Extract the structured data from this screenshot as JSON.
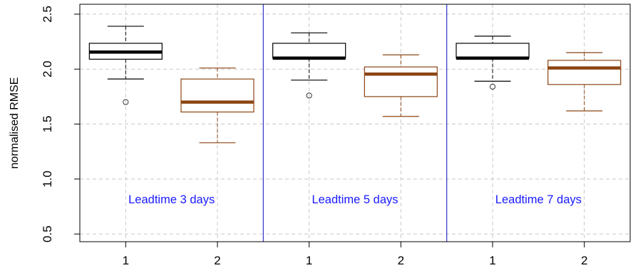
{
  "chart_data": {
    "type": "box",
    "title": "",
    "xlabel": "",
    "ylabel": "normalised RMSE",
    "ylim": [
      0.43,
      2.59
    ],
    "yticks": [
      0.5,
      1.0,
      1.5,
      2.0,
      2.5
    ],
    "ytick_labels": [
      "0.5",
      "1.0",
      "1.5",
      "2.0",
      "2.5"
    ],
    "grid": true,
    "series_colors": [
      "#000000",
      "#8B4513"
    ],
    "divider_color": "#3333cc",
    "label_color": "#1a1aff",
    "panels": [
      {
        "label": "Leadtime 3 days",
        "boxes": [
          {
            "category": "1",
            "series": 0,
            "whisker_low": 1.91,
            "q1": 2.09,
            "median": 2.155,
            "q3": 2.235,
            "whisker_high": 2.39,
            "outliers": [
              1.7
            ]
          },
          {
            "category": "2",
            "series": 1,
            "whisker_low": 1.33,
            "q1": 1.61,
            "median": 1.7,
            "q3": 1.91,
            "whisker_high": 2.01,
            "outliers": []
          }
        ]
      },
      {
        "label": "Leadtime 5 days",
        "boxes": [
          {
            "category": "1",
            "series": 0,
            "whisker_low": 1.9,
            "q1": 2.1,
            "median": 2.1,
            "q3": 2.235,
            "whisker_high": 2.33,
            "outliers": [
              1.76
            ]
          },
          {
            "category": "2",
            "series": 1,
            "whisker_low": 1.57,
            "q1": 1.75,
            "median": 1.955,
            "q3": 2.02,
            "whisker_high": 2.13,
            "outliers": []
          }
        ]
      },
      {
        "label": "Leadtime 7 days",
        "boxes": [
          {
            "category": "1",
            "series": 0,
            "whisker_low": 1.89,
            "q1": 2.1,
            "median": 2.1,
            "q3": 2.235,
            "whisker_high": 2.3,
            "outliers": [
              1.84
            ]
          },
          {
            "category": "2",
            "series": 1,
            "whisker_low": 1.62,
            "q1": 1.86,
            "median": 2.01,
            "q3": 2.08,
            "whisker_high": 2.15,
            "outliers": []
          }
        ]
      }
    ]
  }
}
